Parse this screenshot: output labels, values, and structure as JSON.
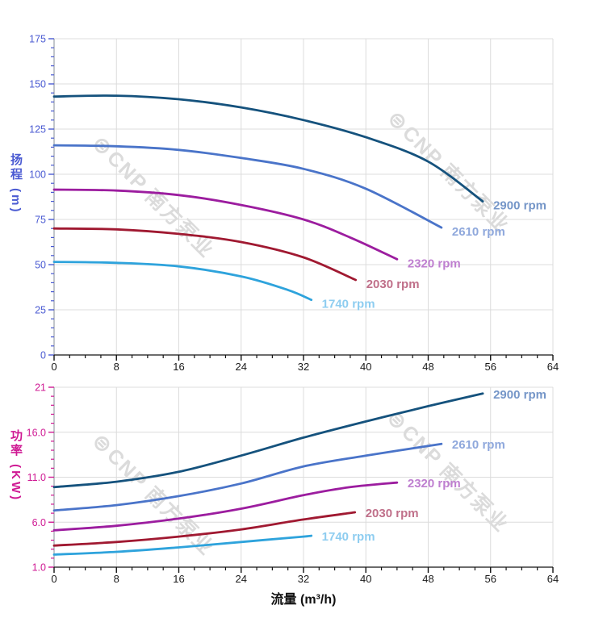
{
  "figure": {
    "x_axis_title": "流量 (m³/h)",
    "watermark": {
      "logo_glyph": "⊜",
      "text": "CNP 南方泵业",
      "color": "#dbdbdb"
    }
  },
  "chart_data": [
    {
      "type": "line",
      "title": "",
      "xlabel": "流量 (m³/h)",
      "ylabel": "扬程 (m)",
      "axis_color": "#4a5ad2",
      "tick_label_color_x": "#1a1a1a",
      "grid": true,
      "legend_position": "inline-end-labels",
      "xlim": [
        0,
        64
      ],
      "ylim": [
        0,
        175
      ],
      "x_ticks": [
        0,
        8,
        16,
        24,
        32,
        40,
        48,
        56,
        64
      ],
      "x_minor_step": 2,
      "y_ticks": [
        0,
        25,
        50,
        75,
        100,
        125,
        150,
        175
      ],
      "y_tick_labels": [
        "0",
        "25",
        "50",
        "75",
        "100",
        "125",
        "150",
        "175"
      ],
      "y_minor_step": 5,
      "series": [
        {
          "name": "2900 rpm",
          "color": "#15527d",
          "label_color": "#7596c8",
          "points": [
            [
              0,
              143
            ],
            [
              8,
              143.5
            ],
            [
              16,
              141.5
            ],
            [
              24,
              137
            ],
            [
              32,
              130
            ],
            [
              40,
              120.5
            ],
            [
              48,
              107
            ],
            [
              55,
              85
            ]
          ]
        },
        {
          "name": "2610 rpm",
          "color": "#4a74c9",
          "label_color": "#8fa8dc",
          "points": [
            [
              0,
              116
            ],
            [
              8,
              115.5
            ],
            [
              16,
              113.5
            ],
            [
              24,
              109
            ],
            [
              32,
              103
            ],
            [
              40,
              92
            ],
            [
              49.7,
              70.5
            ]
          ]
        },
        {
          "name": "2320 rpm",
          "color": "#9c1d9f",
          "label_color": "#bf7fd0",
          "points": [
            [
              0,
              91.5
            ],
            [
              8,
              91
            ],
            [
              16,
              88.5
            ],
            [
              24,
              83
            ],
            [
              32,
              75
            ],
            [
              38,
              65
            ],
            [
              44,
              53
            ]
          ]
        },
        {
          "name": "2030 rpm",
          "color": "#a01931",
          "label_color": "#c0708a",
          "points": [
            [
              0,
              70
            ],
            [
              8,
              69.5
            ],
            [
              16,
              67
            ],
            [
              24,
              62.5
            ],
            [
              32,
              54
            ],
            [
              38.7,
              41.5
            ]
          ]
        },
        {
          "name": "1740 rpm",
          "color": "#2ea3dc",
          "label_color": "#8ecdf0",
          "points": [
            [
              0,
              51.5
            ],
            [
              8,
              51
            ],
            [
              16,
              49
            ],
            [
              24,
              43.5
            ],
            [
              30,
              36
            ],
            [
              33,
              30.5
            ]
          ]
        }
      ]
    },
    {
      "type": "line",
      "title": "",
      "xlabel": "流量 (m³/h)",
      "ylabel": "功率 (KW)",
      "axis_color": "#cf1993",
      "tick_label_color_x": "#1a1a1a",
      "grid": true,
      "legend_position": "inline-end-labels",
      "xlim": [
        0,
        64
      ],
      "ylim": [
        1,
        21
      ],
      "x_ticks": [
        0,
        8,
        16,
        24,
        32,
        40,
        48,
        56,
        64
      ],
      "x_minor_step": 2,
      "y_ticks": [
        1,
        6,
        11,
        16,
        21
      ],
      "y_tick_labels": [
        "1.0",
        "6.0",
        "11.0",
        "16.0",
        "21"
      ],
      "y_minor_step": 1,
      "series": [
        {
          "name": "2900 rpm",
          "color": "#15527d",
          "label_color": "#7596c8",
          "points": [
            [
              0,
              9.9
            ],
            [
              8,
              10.5
            ],
            [
              16,
              11.6
            ],
            [
              24,
              13.4
            ],
            [
              32,
              15.4
            ],
            [
              40,
              17.2
            ],
            [
              48,
              18.9
            ],
            [
              55,
              20.3
            ]
          ]
        },
        {
          "name": "2610 rpm",
          "color": "#4a74c9",
          "label_color": "#8fa8dc",
          "points": [
            [
              0,
              7.3
            ],
            [
              8,
              7.9
            ],
            [
              16,
              8.9
            ],
            [
              24,
              10.3
            ],
            [
              32,
              12.2
            ],
            [
              40,
              13.4
            ],
            [
              49.7,
              14.7
            ]
          ]
        },
        {
          "name": "2320 rpm",
          "color": "#9c1d9f",
          "label_color": "#bf7fd0",
          "points": [
            [
              0,
              5.1
            ],
            [
              8,
              5.6
            ],
            [
              16,
              6.4
            ],
            [
              24,
              7.5
            ],
            [
              32,
              9.0
            ],
            [
              38,
              9.9
            ],
            [
              44,
              10.4
            ]
          ]
        },
        {
          "name": "2030 rpm",
          "color": "#a01931",
          "label_color": "#c0708a",
          "points": [
            [
              0,
              3.4
            ],
            [
              8,
              3.8
            ],
            [
              16,
              4.4
            ],
            [
              24,
              5.2
            ],
            [
              32,
              6.3
            ],
            [
              38.6,
              7.1
            ]
          ]
        },
        {
          "name": "1740 rpm",
          "color": "#2ea3dc",
          "label_color": "#8ecdf0",
          "points": [
            [
              0,
              2.4
            ],
            [
              8,
              2.7
            ],
            [
              16,
              3.2
            ],
            [
              24,
              3.8
            ],
            [
              32,
              4.4
            ],
            [
              33,
              4.5
            ]
          ]
        }
      ]
    }
  ]
}
